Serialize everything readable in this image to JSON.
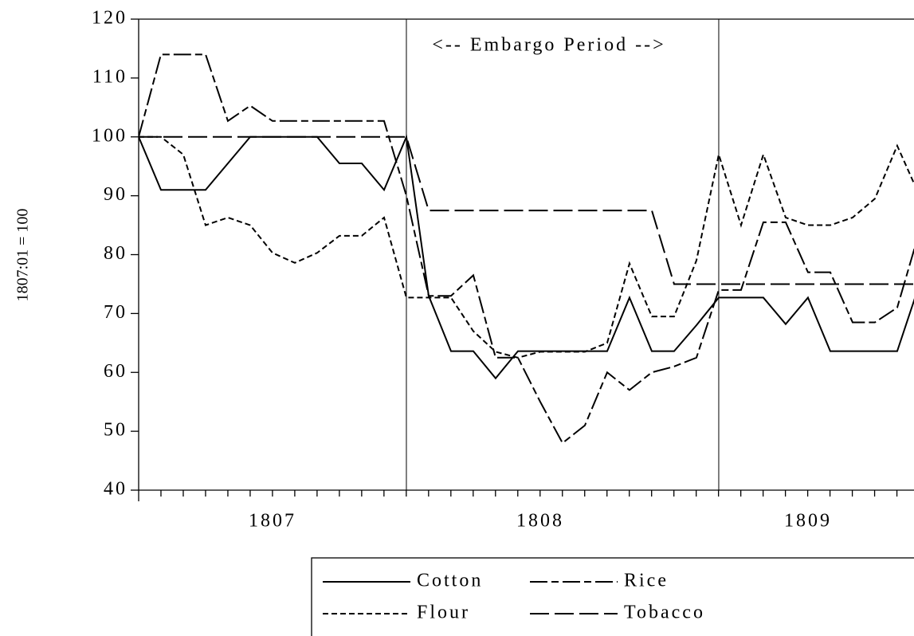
{
  "chart_data": {
    "type": "line",
    "y_label": "1807:01 = 100",
    "annotation": "<-- Embargo Period -->",
    "vlines": [
      1808,
      1809.1667
    ],
    "x": [
      1807,
      1807.0833,
      1807.1667,
      1807.25,
      1807.3333,
      1807.4167,
      1807.5,
      1807.5833,
      1807.6667,
      1807.75,
      1807.8333,
      1807.9167,
      1808,
      1808.0833,
      1808.1667,
      1808.25,
      1808.3333,
      1808.4167,
      1808.5,
      1808.5833,
      1808.6667,
      1808.75,
      1808.8333,
      1808.9167,
      1809,
      1809.0833,
      1809.1667,
      1809.25,
      1809.3333,
      1809.4167,
      1809.5,
      1809.5833,
      1809.6667,
      1809.75,
      1809.8333,
      1809.9167
    ],
    "series": [
      {
        "name": "Cotton",
        "color": "#000000",
        "dash": "none",
        "values": [
          100,
          91,
          91,
          91,
          95.5,
          100,
          100,
          100,
          100,
          95.5,
          95.5,
          91,
          100,
          73,
          63.6,
          63.6,
          59,
          63.6,
          63.6,
          63.6,
          63.6,
          63.6,
          72.7,
          63.6,
          63.6,
          68,
          72.7,
          72.7,
          72.7,
          68.2,
          72.7,
          63.6,
          63.6,
          63.6,
          63.6,
          75
        ]
      },
      {
        "name": "Rice",
        "color": "#000000",
        "dash": "22,5,9,5",
        "values": [
          100,
          114,
          114,
          114,
          102.7,
          105.3,
          102.7,
          102.7,
          102.7,
          102.7,
          102.7,
          102.7,
          90,
          73,
          73,
          76.5,
          62.5,
          62.5,
          55,
          48,
          51,
          60,
          57,
          60,
          61,
          62.5,
          74,
          74,
          85.5,
          85.5,
          77,
          77,
          68.5,
          68.5,
          71,
          84
        ]
      },
      {
        "name": "Flour",
        "color": "#000000",
        "dash": "7,4",
        "values": [
          100,
          100,
          97,
          85,
          86.3,
          85,
          80.3,
          78.6,
          80.3,
          83.2,
          83.2,
          86.3,
          72.7,
          72.7,
          72.7,
          67,
          63.5,
          62.5,
          63.5,
          63.5,
          63.5,
          65,
          78.5,
          69.5,
          69.5,
          79,
          97,
          85,
          97,
          86.3,
          85,
          85,
          86.3,
          89.5,
          98.5,
          90
        ]
      },
      {
        "name": "Tobacco",
        "color": "#000000",
        "dash": "24,7",
        "values": [
          100,
          100,
          100,
          100,
          100,
          100,
          100,
          100,
          100,
          100,
          100,
          100,
          100,
          87.5,
          87.5,
          87.5,
          87.5,
          87.5,
          87.5,
          87.5,
          87.5,
          87.5,
          87.5,
          87.5,
          75,
          75,
          75,
          75,
          75,
          75,
          75,
          75,
          75,
          75,
          75,
          75
        ]
      }
    ],
    "xlim": [
      1807,
      1809.896
    ],
    "xticks": [
      {
        "value": 1807.5,
        "label": "1807"
      },
      {
        "value": 1808.5,
        "label": "1808"
      },
      {
        "value": 1809.5,
        "label": "1809"
      }
    ],
    "ylim": [
      40,
      120
    ],
    "yticks": [
      40,
      50,
      60,
      70,
      80,
      90,
      100,
      110,
      120
    ],
    "grid": false,
    "legend": "bottom"
  }
}
